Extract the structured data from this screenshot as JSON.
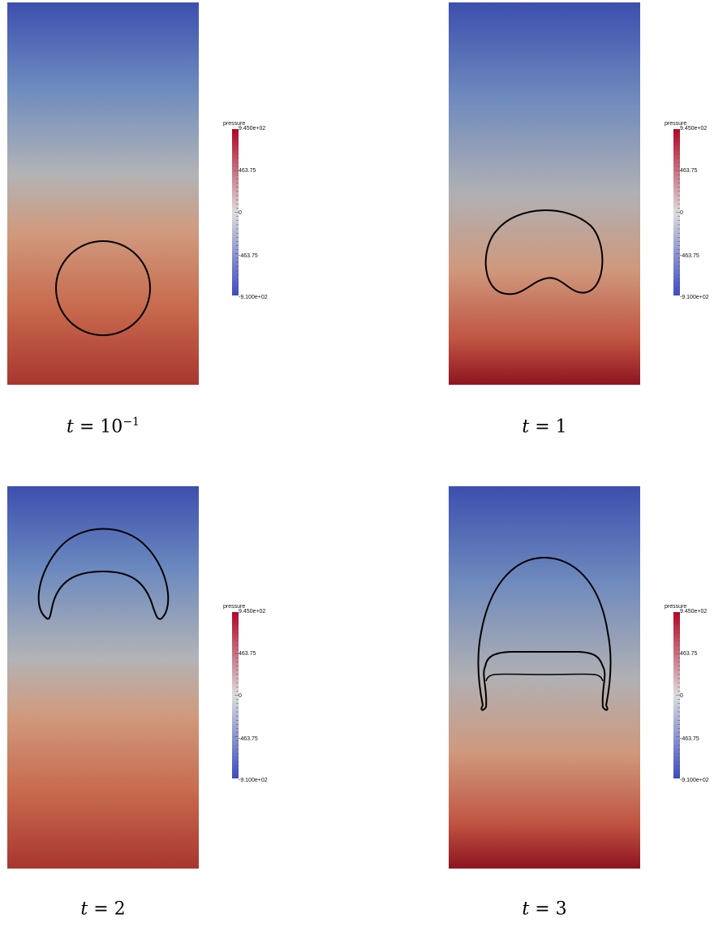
{
  "colorbar": {
    "title": "pressure",
    "max_label": "9.450e+02",
    "upper_label": "463.75",
    "mid_label": "0",
    "lower_label": "-463.75",
    "min_label": "-9.100e+02",
    "color_high": "#b40426",
    "color_mid": "#dddddd",
    "color_low": "#3b4cc0"
  },
  "panels": [
    {
      "id": "t01",
      "caption_var": "t",
      "caption_eq": " = 10",
      "caption_sup": "−1"
    },
    {
      "id": "t1",
      "caption_var": "t",
      "caption_eq": " = 1",
      "caption_sup": ""
    },
    {
      "id": "t2",
      "caption_var": "t",
      "caption_eq": " = 2",
      "caption_sup": ""
    },
    {
      "id": "t3",
      "caption_var": "t",
      "caption_eq": " = 3",
      "caption_sup": ""
    }
  ]
}
